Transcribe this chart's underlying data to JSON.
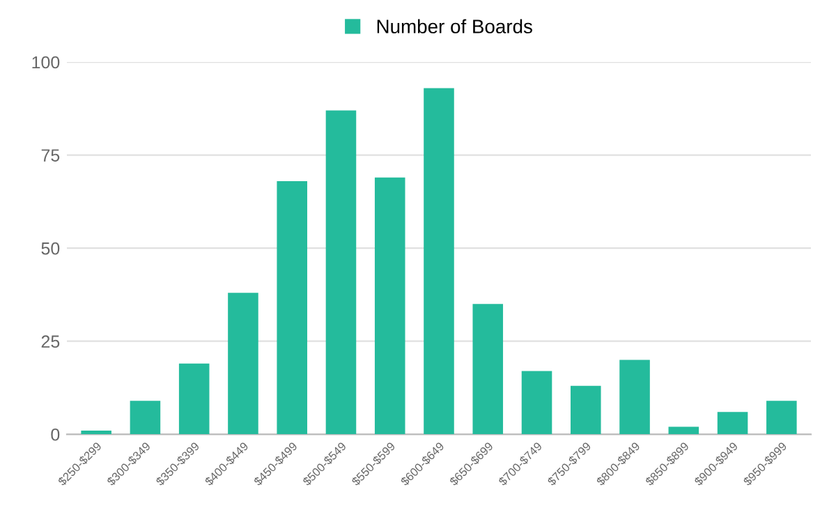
{
  "chart_data": {
    "type": "bar",
    "categories": [
      "$250-$299",
      "$300-$349",
      "$350-$399",
      "$400-$449",
      "$450-$499",
      "$500-$549",
      "$550-$599",
      "$600-$649",
      "$650-$699",
      "$700-$749",
      "$750-$799",
      "$800-$849",
      "$850-$899",
      "$900-$949",
      "$950-$999"
    ],
    "series": [
      {
        "name": "Number of Boards",
        "color": "#24bb9c",
        "values": [
          1,
          9,
          19,
          38,
          68,
          87,
          69,
          93,
          35,
          17,
          13,
          20,
          2,
          6,
          9
        ]
      }
    ],
    "ylim": [
      0,
      100
    ],
    "yticks": [
      0,
      25,
      50,
      75,
      100
    ],
    "grid": "y",
    "legend": "top"
  }
}
